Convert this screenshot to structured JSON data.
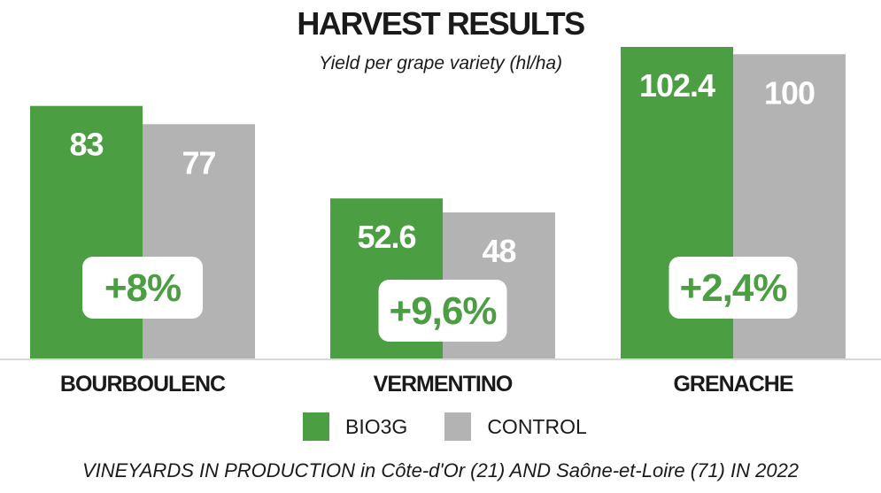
{
  "title": "HARVEST RESULTS",
  "subtitle": "Yield per grape variety (hl/ha)",
  "footnote": "VINEYARDS IN PRODUCTION in Côte-d'Or (21) AND Saône-et-Loire (71) IN 2022",
  "colors": {
    "bio3g": "#4c9e42",
    "control": "#b3b3b3"
  },
  "chart_data": {
    "type": "bar",
    "categories": [
      "BOURBOULENC",
      "VERMENTINO",
      "GRENACHE"
    ],
    "series": [
      {
        "name": "BIO3G",
        "values": [
          83,
          52.6,
          102.4
        ],
        "labels": [
          "83",
          "52.6",
          "102.4"
        ]
      },
      {
        "name": "CONTROL",
        "values": [
          77,
          48,
          100
        ],
        "labels": [
          "77",
          "48",
          "100"
        ]
      }
    ],
    "annotations": [
      "+8%",
      "+9,6%",
      "+2,4%"
    ],
    "ylim": [
      0,
      102.4
    ],
    "legend_position": "bottom",
    "grid": false
  }
}
